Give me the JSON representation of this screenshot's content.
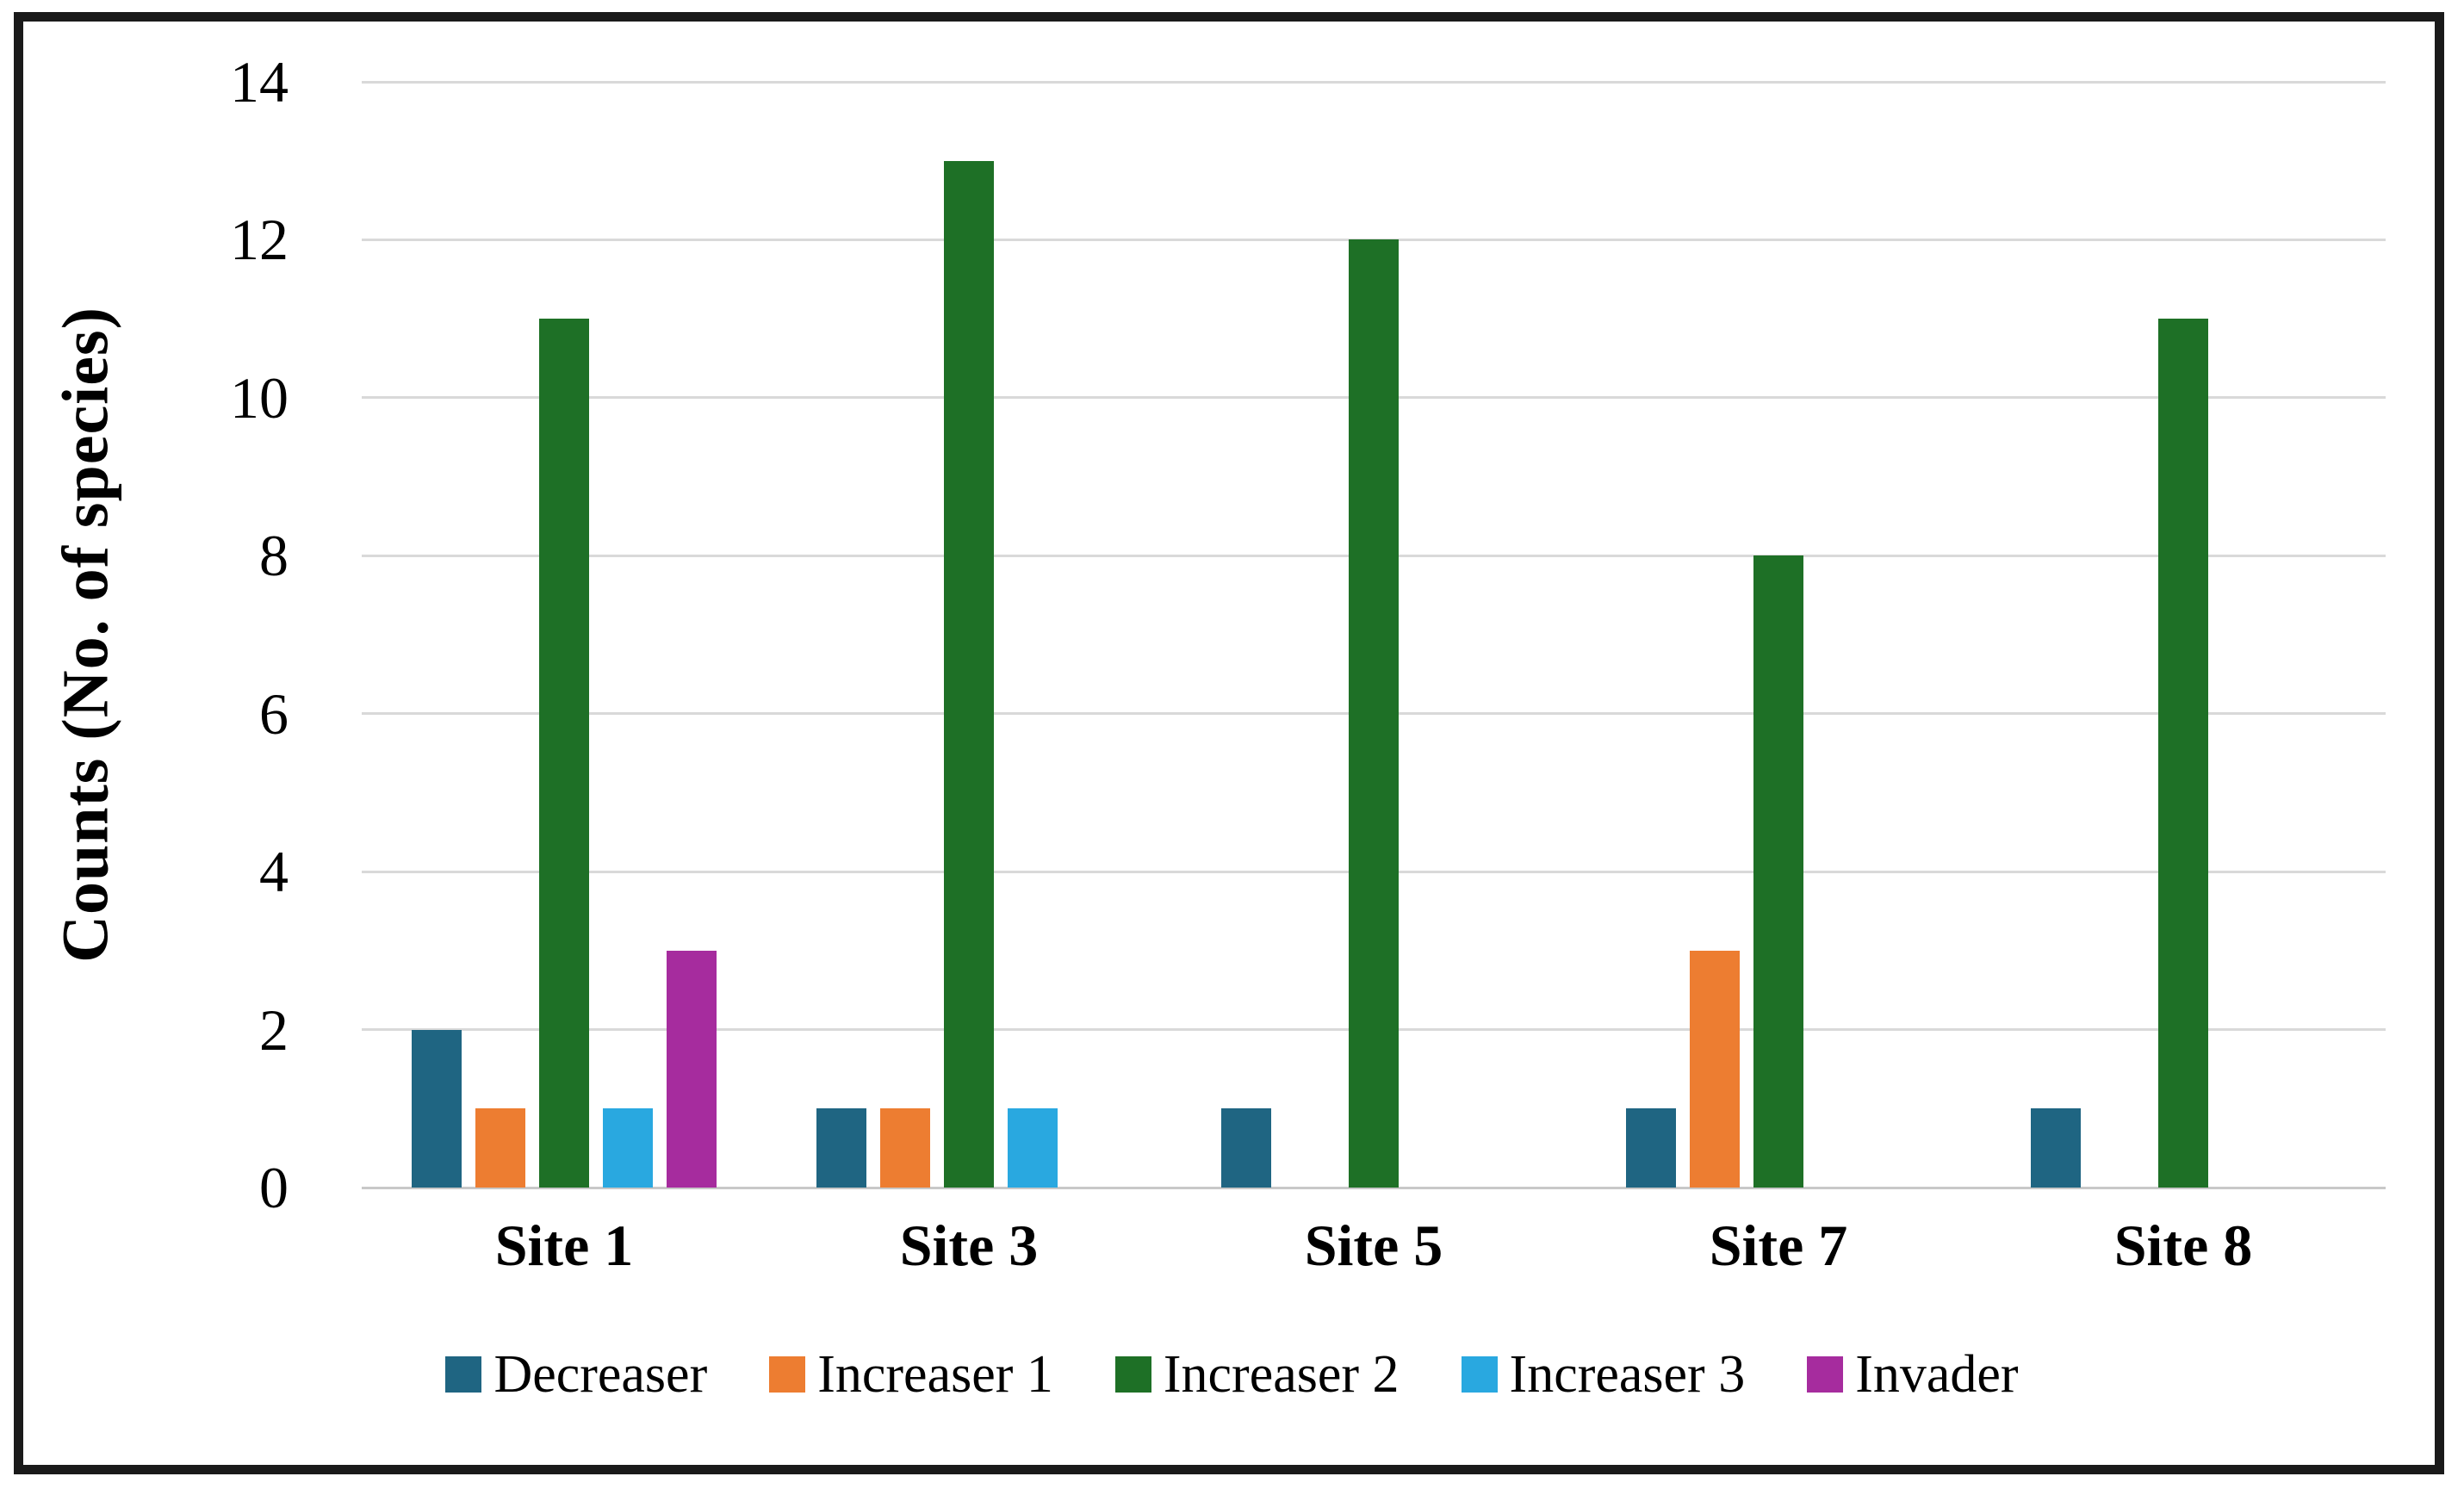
{
  "chart_data": {
    "type": "bar",
    "title": "",
    "ylabel": "Counts (No. of species)",
    "xlabel": "",
    "categories": [
      "Site 1",
      "Site 3",
      "Site 5",
      "Site 7",
      "Site 8"
    ],
    "series": [
      {
        "name": "Decreaser",
        "color": "#1F6582",
        "values": [
          2,
          1,
          1,
          1,
          1
        ]
      },
      {
        "name": "Increaser 1",
        "color": "#ED7D31",
        "values": [
          1,
          1,
          0,
          3,
          0
        ]
      },
      {
        "name": "Increaser 2",
        "color": "#1E7026",
        "values": [
          11,
          13,
          12,
          8,
          11
        ]
      },
      {
        "name": "Increaser 3",
        "color": "#29A8E0",
        "values": [
          1,
          1,
          0,
          0,
          0
        ]
      },
      {
        "name": "Invader",
        "color": "#A62C9E",
        "values": [
          3,
          0,
          0,
          0,
          0
        ]
      }
    ],
    "ylim": [
      0,
      14
    ],
    "yticks": [
      0,
      2,
      4,
      6,
      8,
      10,
      12,
      14
    ],
    "grid": true,
    "legend_position": "bottom",
    "layout_hints": {
      "grid_color": "#D9D9D9",
      "baseline_color": "#C8C8C8",
      "frame_border_color": "#1A1A1A",
      "text_color": "#000000"
    }
  }
}
